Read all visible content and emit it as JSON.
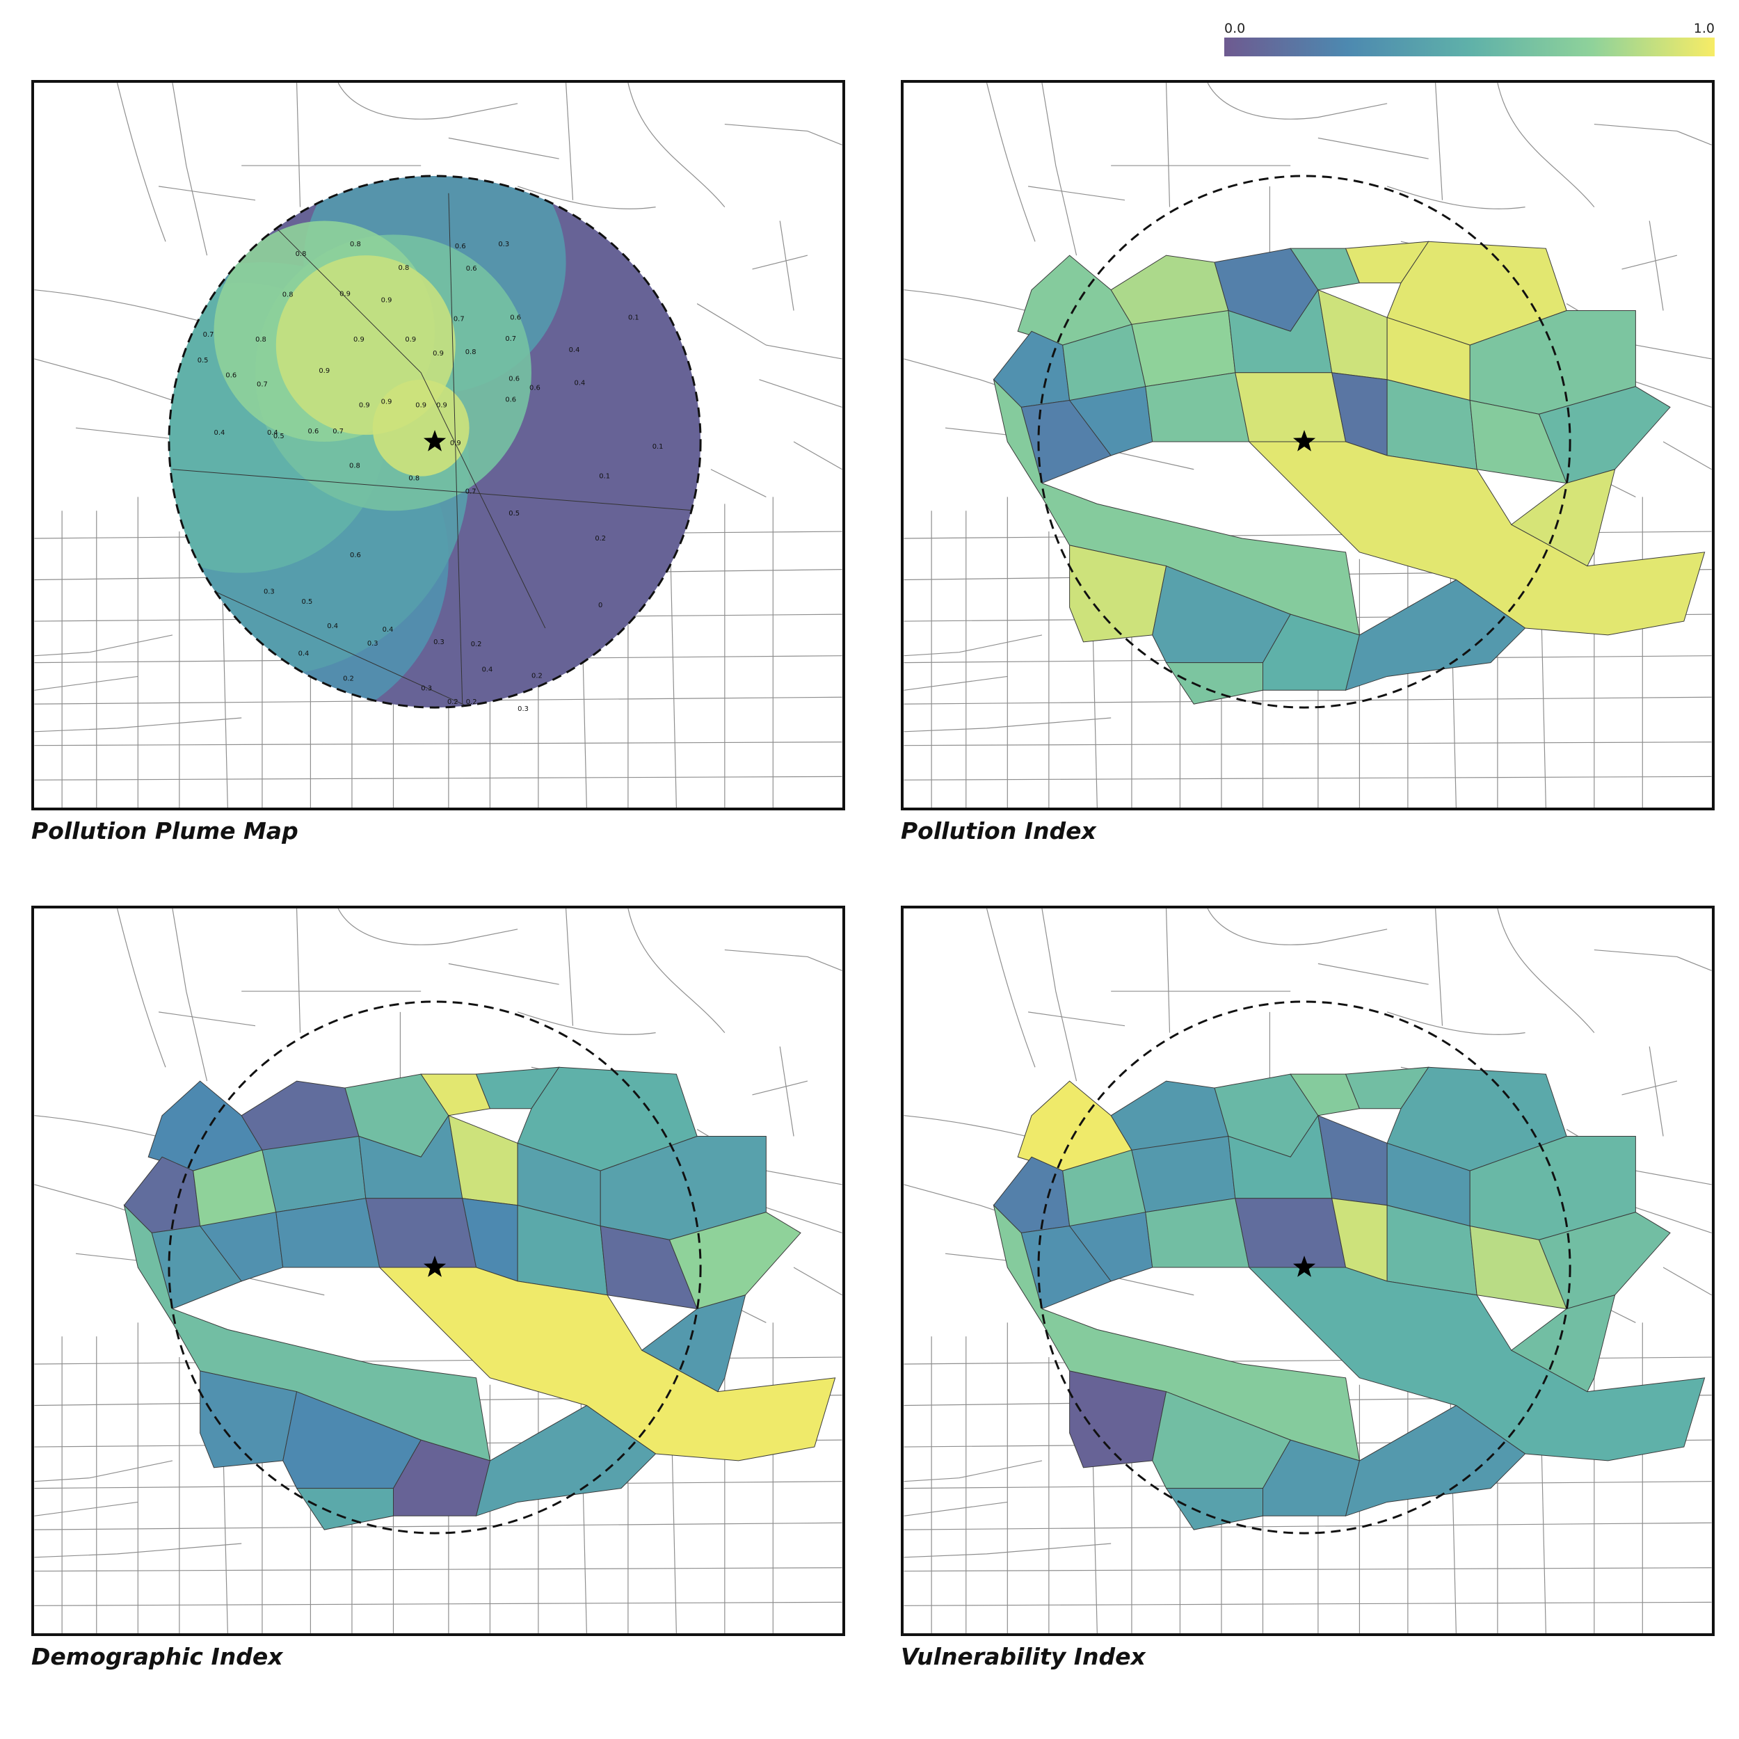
{
  "colorbar": {
    "min_label": "0.0",
    "max_label": "1.0",
    "colormap": "viridis",
    "colors": [
      "#6e5a90",
      "#4d89b0",
      "#5fb1a9",
      "#8fd29a",
      "#f7ec66"
    ]
  },
  "panels": [
    {
      "id": "plume",
      "title": "Pollution Plume Map"
    },
    {
      "id": "pollution",
      "title": "Pollution Index"
    },
    {
      "id": "demographic",
      "title": "Demographic Index"
    },
    {
      "id": "vulnerability",
      "title": "Vulnerability Index"
    }
  ],
  "plume_labels": [
    "0.8",
    "0.6",
    "0.3",
    "0.8",
    "0.8",
    "0.6",
    "0.8",
    "0.9",
    "0.9",
    "0.7",
    "0.6",
    "0.1",
    "0.7",
    "0.8",
    "0.9",
    "0.9",
    "0.9",
    "0.8",
    "0.7",
    "0.4",
    "0.5",
    "0.6",
    "0.7",
    "0.9",
    "0.9",
    "0.6",
    "0.6",
    "0.9",
    "0.9",
    "0.9",
    "0.4",
    "0.4",
    "0.5",
    "0.6",
    "0.7",
    "0.8",
    "0.9",
    "0.6",
    "0.4",
    "0.1",
    "0.8",
    "0.7",
    "0.1",
    "0.5",
    "0.2",
    "0.6",
    "0.3",
    "0.5",
    "0.4",
    "0.4",
    "0.4",
    "0.3",
    "0.3",
    "0.2",
    "0.4",
    "0.2",
    "0.2",
    "0.3",
    "0.2",
    "0.2",
    "0.3",
    "0"
  ],
  "marker": "star"
}
